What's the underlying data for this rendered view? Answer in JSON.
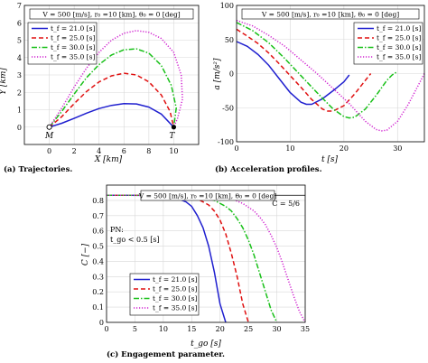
{
  "header_text": "V = 500 [m/s], r₀ =10 [km], θ₀ = 0 [deg]",
  "colors": {
    "t21": "#1f1fcf",
    "t25": "#e01010",
    "t30": "#18c018",
    "t35": "#d020d0"
  },
  "legend": [
    "t_f = 21.0 [s]",
    "t_f = 25.0 [s]",
    "t_f = 30.0 [s]",
    "t_f = 35.0 [s]"
  ],
  "chart_data": [
    {
      "id": "a",
      "type": "line",
      "caption": "(a) Trajectories.",
      "title": "V = 500 [m/s], r₀ =10 [km], θ₀ = 0 [deg]",
      "xlabel": "X [km]",
      "ylabel": "Y [km]",
      "xlim": [
        -2,
        12
      ],
      "ylim": [
        -1,
        7
      ],
      "xticks": [
        0,
        2,
        4,
        6,
        8,
        10
      ],
      "yticks": [
        0,
        1,
        2,
        3,
        4,
        5,
        6,
        7
      ],
      "grid": true,
      "legend_position": "top-left",
      "markers": [
        {
          "label": "M",
          "x": 0,
          "y": 0
        },
        {
          "label": "T",
          "x": 10,
          "y": 0
        }
      ],
      "series": [
        {
          "name": "t_f = 21.0 [s]",
          "x": [
            0,
            1,
            2,
            3,
            4,
            5,
            6,
            7,
            8,
            9,
            10
          ],
          "y": [
            0,
            0.22,
            0.5,
            0.8,
            1.07,
            1.25,
            1.35,
            1.33,
            1.15,
            0.75,
            0
          ]
        },
        {
          "name": "t_f = 25.0 [s]",
          "x": [
            0,
            1,
            2,
            3,
            4,
            5,
            6,
            7,
            8,
            9,
            9.7,
            10
          ],
          "y": [
            0,
            0.6,
            1.35,
            2.05,
            2.6,
            2.95,
            3.1,
            3.0,
            2.6,
            1.85,
            0.9,
            0
          ]
        },
        {
          "name": "t_f = 30.0 [s]",
          "x": [
            0,
            1,
            2,
            3,
            4,
            5,
            6,
            7,
            8,
            9,
            9.8,
            10.2,
            10
          ],
          "y": [
            0,
            0.9,
            1.9,
            2.85,
            3.6,
            4.15,
            4.45,
            4.5,
            4.25,
            3.55,
            2.4,
            1.1,
            0
          ]
        },
        {
          "name": "t_f = 35.0 [s]",
          "x": [
            0,
            1,
            2,
            3,
            4,
            5,
            6,
            7,
            8,
            9,
            10,
            10.6,
            10.7,
            10.3,
            10
          ],
          "y": [
            0,
            1.1,
            2.3,
            3.4,
            4.3,
            5.0,
            5.4,
            5.55,
            5.45,
            5.1,
            4.3,
            3.0,
            1.6,
            0.5,
            0
          ]
        }
      ]
    },
    {
      "id": "b",
      "type": "line",
      "caption": "(b) Acceleration profiles.",
      "title": "V = 500 [m/s], r₀ =10 [km], θ₀ = 0 [deg]",
      "xlabel": "t [s]",
      "ylabel": "a [m/s²]",
      "xlim": [
        0,
        35
      ],
      "ylim": [
        -100,
        100
      ],
      "xticks": [
        0,
        10,
        20,
        30
      ],
      "yticks": [
        -100,
        -50,
        0,
        50,
        100
      ],
      "grid": true,
      "legend_position": "top-right",
      "series": [
        {
          "name": "t_f = 21.0 [s]",
          "x": [
            0,
            2,
            4,
            6,
            8,
            10,
            12,
            13,
            14,
            16,
            18,
            20,
            21
          ],
          "y": [
            47,
            40,
            28,
            12,
            -8,
            -28,
            -42,
            -45,
            -45,
            -37,
            -25,
            -12,
            -2
          ]
        },
        {
          "name": "t_f = 25.0 [s]",
          "x": [
            0,
            2,
            4,
            6,
            8,
            10,
            12,
            14,
            16,
            17,
            18,
            20,
            22,
            24,
            25
          ],
          "y": [
            65,
            55,
            44,
            30,
            14,
            -3,
            -20,
            -38,
            -52,
            -55,
            -55,
            -47,
            -30,
            -10,
            0
          ]
        },
        {
          "name": "t_f = 30.0 [s]",
          "x": [
            0,
            3,
            6,
            9,
            12,
            15,
            18,
            20,
            21,
            22,
            24,
            26,
            28,
            29,
            30
          ],
          "y": [
            75,
            63,
            45,
            22,
            -3,
            -28,
            -52,
            -63,
            -65,
            -64,
            -52,
            -32,
            -10,
            -2,
            3
          ]
        },
        {
          "name": "t_f = 35.0 [s]",
          "x": [
            0,
            3,
            6,
            9,
            12,
            15,
            18,
            21,
            24,
            26,
            27,
            28,
            30,
            32,
            34,
            35
          ],
          "y": [
            78,
            70,
            56,
            40,
            20,
            0,
            -22,
            -44,
            -70,
            -82,
            -84,
            -83,
            -70,
            -45,
            -15,
            0
          ]
        }
      ]
    },
    {
      "id": "c",
      "type": "line",
      "caption": "(c) Engagement parameter.",
      "title": "V = 500 [m/s], r₀ =10 [km], θ₀ = 0 [deg]",
      "xlabel": "t_go [s]",
      "ylabel": "C [−]",
      "xlim": [
        0,
        35
      ],
      "ylim": [
        0,
        0.9
      ],
      "xticks": [
        0,
        5,
        10,
        15,
        20,
        25,
        30,
        35
      ],
      "yticks": [
        0,
        0.1,
        0.2,
        0.3,
        0.4,
        0.5,
        0.6,
        0.7,
        0.8
      ],
      "grid": true,
      "legend_position": "bottom-left",
      "annotations": [
        "C = 5/6",
        "PN:",
        "t_go < 0.5 [s]"
      ],
      "reference_line": 0.8333,
      "series": [
        {
          "name": "t_f = 21.0 [s]",
          "x": [
            0,
            4,
            8,
            10,
            12,
            14,
            15,
            16,
            17,
            18,
            19,
            20,
            21
          ],
          "y": [
            0.833,
            0.833,
            0.832,
            0.83,
            0.82,
            0.79,
            0.76,
            0.7,
            0.62,
            0.5,
            0.33,
            0.12,
            0
          ]
        },
        {
          "name": "t_f = 25.0 [s]",
          "x": [
            0,
            8,
            12,
            14,
            16,
            18,
            19,
            20,
            21,
            22,
            23,
            24,
            25
          ],
          "y": [
            0.833,
            0.833,
            0.83,
            0.825,
            0.81,
            0.77,
            0.73,
            0.67,
            0.58,
            0.45,
            0.3,
            0.12,
            0
          ]
        },
        {
          "name": "t_f = 30.0 [s]",
          "x": [
            0,
            10,
            14,
            17,
            19,
            21,
            22,
            23,
            24,
            25,
            26,
            27,
            28,
            29,
            30
          ],
          "y": [
            0.833,
            0.833,
            0.83,
            0.82,
            0.8,
            0.76,
            0.73,
            0.68,
            0.62,
            0.54,
            0.44,
            0.32,
            0.2,
            0.08,
            0
          ]
        },
        {
          "name": "t_f = 35.0 [s]",
          "x": [
            0,
            12,
            16,
            20,
            22,
            24,
            26,
            27,
            28,
            29,
            30,
            31,
            32,
            33,
            34,
            35
          ],
          "y": [
            0.833,
            0.833,
            0.83,
            0.82,
            0.81,
            0.78,
            0.73,
            0.69,
            0.64,
            0.57,
            0.49,
            0.39,
            0.28,
            0.17,
            0.07,
            0
          ]
        }
      ]
    }
  ]
}
